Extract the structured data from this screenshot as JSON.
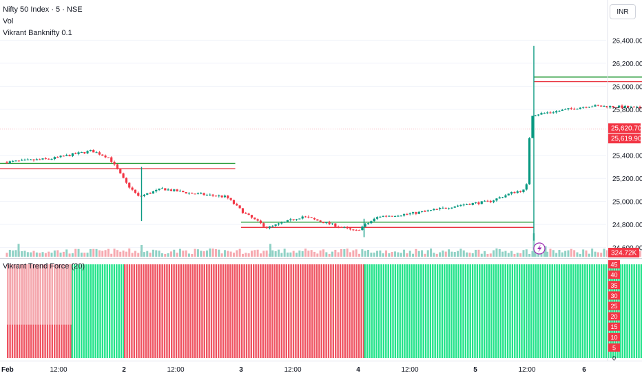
{
  "legend": {
    "title": "Nifty 50 Index · 5 · NSE",
    "vol": "Vol",
    "study": "Vikrant Banknifty 0.1"
  },
  "currency": "INR",
  "indicator_title": "Vikrant Trend Force (20)",
  "colors": {
    "up": "#089981",
    "down": "#f23645",
    "trend_green": "#22e38a",
    "trend_red": "#ef5462",
    "trend_pink": "#f4a8ae",
    "level_green": "#2e9e3e",
    "level_red": "#e8323e"
  },
  "chart_data": [
    {
      "type": "candlestick",
      "x_ticks": [
        "Feb",
        "12:00",
        "2",
        "12:00",
        "3",
        "12:00",
        "4",
        "12:00",
        "5",
        "12:00",
        "6"
      ],
      "y_ticks": [
        "26,400.00",
        "26,200.00",
        "26,000.00",
        "25,800.00",
        "25,400.00",
        "25,200.00",
        "25,000.00",
        "24,800.00",
        "24,600.00"
      ],
      "ylim": [
        24520,
        26480
      ],
      "price_labels": [
        "25,620.70",
        "25,619.90"
      ],
      "volume_label": "324.72K",
      "path": [
        [
          0,
          25340
        ],
        [
          0.4,
          25370
        ],
        [
          0.75,
          25440
        ],
        [
          0.9,
          25380
        ],
        [
          1.05,
          25150
        ],
        [
          1.15,
          25040
        ],
        [
          1.35,
          25110
        ],
        [
          1.6,
          25070
        ],
        [
          1.9,
          25040
        ],
        [
          2.05,
          24900
        ],
        [
          2.25,
          24770
        ],
        [
          2.55,
          24870
        ],
        [
          2.8,
          24800
        ],
        [
          3.0,
          24740
        ],
        [
          3.2,
          24870
        ],
        [
          3.45,
          24890
        ],
        [
          3.7,
          24930
        ],
        [
          3.9,
          24970
        ],
        [
          4.15,
          25000
        ],
        [
          4.35,
          25080
        ],
        [
          4.46,
          25100
        ],
        [
          4.5,
          25750
        ],
        [
          4.7,
          25780
        ],
        [
          5.0,
          25830
        ],
        [
          5.3,
          25820
        ],
        [
          5.7,
          25790
        ],
        [
          6.0,
          25770
        ],
        [
          6.4,
          25780
        ],
        [
          6.7,
          25790
        ],
        [
          7.0,
          25780
        ],
        [
          7.3,
          25790
        ],
        [
          7.6,
          25800
        ],
        [
          7.85,
          25800
        ],
        [
          8.1,
          25750
        ],
        [
          8.4,
          25680
        ],
        [
          8.7,
          25660
        ],
        [
          9.0,
          25650
        ],
        [
          9.25,
          25630
        ]
      ],
      "spikes": [
        {
          "x": 4.5,
          "low": 24660,
          "high": 26350
        },
        {
          "x": 1.15,
          "low": 24830,
          "high": 25300
        },
        {
          "x": 6.0,
          "low": 25600,
          "high": 25840
        },
        {
          "x": 3.05,
          "low": 24690,
          "high": 24850
        }
      ],
      "levels": [
        {
          "x0": -0.2,
          "x1": 1.95,
          "value": 25330,
          "color": "green"
        },
        {
          "x0": -0.2,
          "x1": 1.95,
          "value": 25285,
          "color": "red"
        },
        {
          "x0": 2.0,
          "x1": 4.5,
          "value": 24820,
          "color": "green"
        },
        {
          "x0": 2.0,
          "x1": 4.5,
          "value": 24775,
          "color": "red"
        },
        {
          "x0": 4.5,
          "x1": 6.6,
          "value": 26080,
          "color": "green"
        },
        {
          "x0": 4.5,
          "x1": 6.6,
          "value": 26040,
          "color": "red"
        },
        {
          "x0": 6.0,
          "x1": 8.8,
          "value": 25705,
          "color": "green"
        },
        {
          "x0": 6.0,
          "x1": 8.8,
          "value": 25660,
          "color": "red"
        },
        {
          "x0": 8.8,
          "x1": 9.8,
          "value": 25760,
          "color": "green"
        },
        {
          "x0": 8.8,
          "x1": 9.8,
          "value": 25705,
          "color": "red"
        }
      ],
      "volume_bursts": [
        {
          "x": 0.1,
          "value": 0.55
        },
        {
          "x": 1.15,
          "value": 0.5
        },
        {
          "x": 2.25,
          "value": 0.55
        },
        {
          "x": 4.5,
          "value": 1.0
        },
        {
          "x": 4.6,
          "value": 0.45
        },
        {
          "x": 6.0,
          "value": 0.75
        },
        {
          "x": 8.9,
          "value": 0.45
        },
        {
          "x": 9.05,
          "value": 0.35
        }
      ]
    },
    {
      "type": "bar",
      "title": "Vikrant Trend Force (20)",
      "y_ticks": [
        "45",
        "40",
        "35",
        "30",
        "25",
        "20",
        "15",
        "10",
        "5",
        "0"
      ],
      "ylim": [
        0,
        47
      ],
      "bar_value": 45,
      "segments": [
        {
          "x0": 0.0,
          "x1": 0.55,
          "color": "red"
        },
        {
          "x0": 0.55,
          "x1": 1.0,
          "color": "green"
        },
        {
          "x0": 1.0,
          "x1": 3.05,
          "color": "red"
        },
        {
          "x0": 3.05,
          "x1": 6.0,
          "color": "green"
        },
        {
          "x0": 6.0,
          "x1": 7.6,
          "color": "red"
        },
        {
          "x0": 7.6,
          "x1": 8.05,
          "color": "green"
        },
        {
          "x0": 8.05,
          "x1": 9.25,
          "color": "red"
        }
      ],
      "pink_overlays": [
        {
          "x0": 0.0,
          "x1": 0.55,
          "from": 16,
          "to": 45
        },
        {
          "x0": 7.0,
          "x1": 7.6,
          "from": 38,
          "to": 45
        }
      ]
    }
  ]
}
